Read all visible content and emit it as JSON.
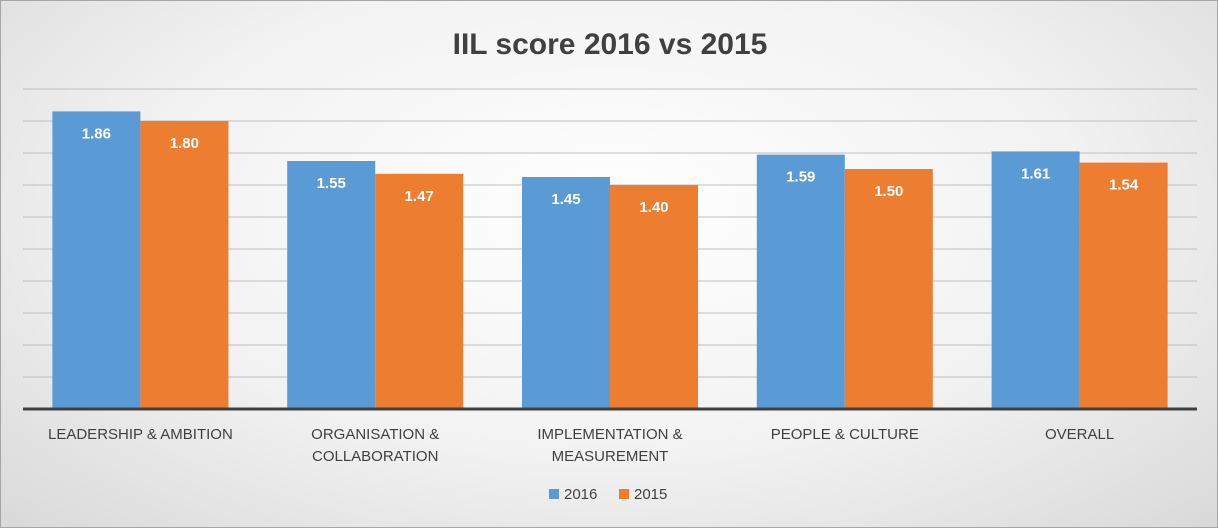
{
  "chart_data": {
    "type": "bar",
    "title": "IIL score 2016 vs 2015",
    "categories": [
      [
        "LEADERSHIP & AMBITION"
      ],
      [
        "ORGANISATION &",
        "COLLABORATION"
      ],
      [
        "IMPLEMENTATION &",
        "MEASUREMENT"
      ],
      [
        "PEOPLE & CULTURE"
      ],
      [
        "OVERALL"
      ]
    ],
    "series": [
      {
        "name": "2016",
        "color": "#5b9bd5",
        "values": [
          1.86,
          1.55,
          1.45,
          1.59,
          1.61
        ],
        "labels": [
          "1.86",
          "1.55",
          "1.45",
          "1.59",
          "1.61"
        ]
      },
      {
        "name": "2015",
        "color": "#ed7d31",
        "values": [
          1.8,
          1.47,
          1.4,
          1.5,
          1.54
        ],
        "labels": [
          "1.80",
          "1.47",
          "1.40",
          "1.50",
          "1.54"
        ]
      }
    ],
    "ylim": [
      0,
      2.0
    ],
    "grid": true,
    "legend_position": "bottom"
  }
}
